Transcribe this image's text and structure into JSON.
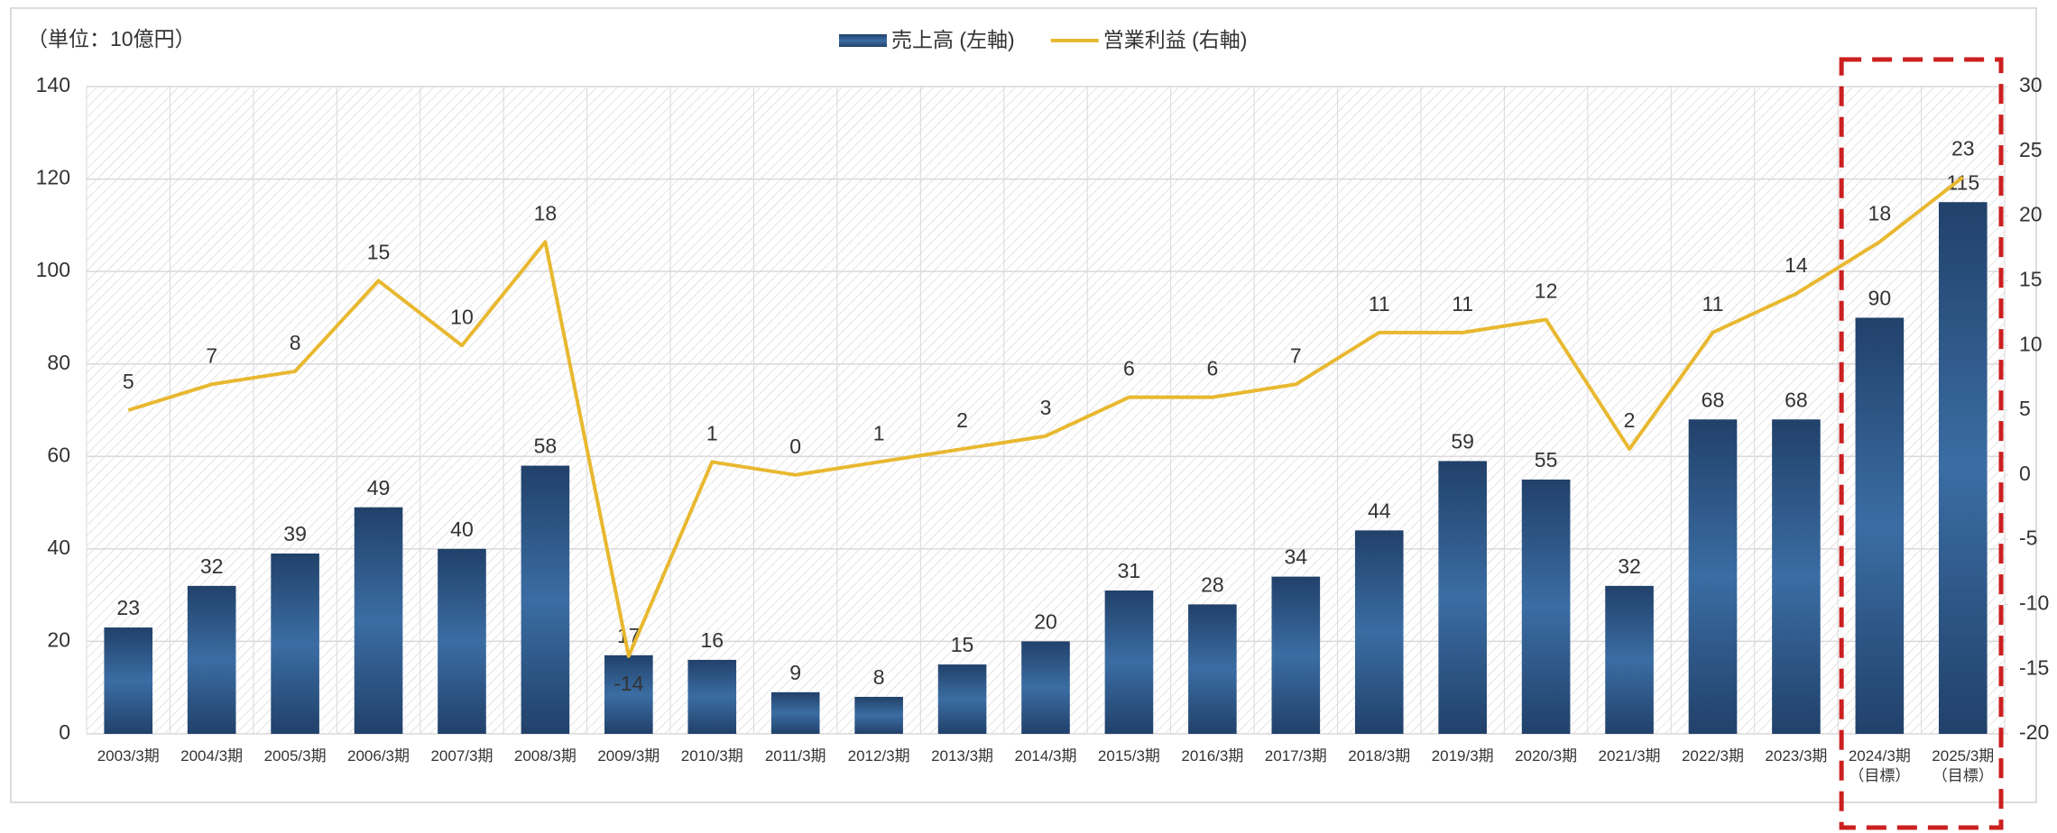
{
  "chart_data": {
    "type": "bar",
    "unit_label": "（単位：10億円）",
    "categories": [
      "2003/3期",
      "2004/3期",
      "2005/3期",
      "2006/3期",
      "2007/3期",
      "2008/3期",
      "2009/3期",
      "2010/3期",
      "2011/3期",
      "2012/3期",
      "2013/3期",
      "2014/3期",
      "2015/3期",
      "2016/3期",
      "2017/3期",
      "2018/3期",
      "2019/3期",
      "2020/3期",
      "2021/3期",
      "2022/3期",
      "2023/3期",
      "2024/3期\n（目標）",
      "2025/3期\n（目標）"
    ],
    "series": [
      {
        "name": "売上高 (左軸)",
        "type": "bar",
        "color": "#2c5282",
        "values": [
          23,
          32,
          39,
          49,
          40,
          58,
          17,
          16,
          9,
          8,
          15,
          20,
          31,
          28,
          34,
          44,
          59,
          55,
          32,
          68,
          68,
          90,
          115
        ]
      },
      {
        "name": "営業利益 (右軸)",
        "type": "line",
        "axis": "y2",
        "color": "#e8b830",
        "values": [
          5,
          7,
          8,
          15,
          10,
          18,
          -14,
          1,
          0,
          1,
          2,
          3,
          6,
          6,
          7,
          11,
          11,
          12,
          2,
          11,
          14,
          18,
          23
        ]
      }
    ],
    "ylim": [
      0,
      140
    ],
    "yticks": [
      0,
      20,
      40,
      60,
      80,
      100,
      120,
      140
    ],
    "y2lim": [
      -20,
      30
    ],
    "y2ticks": [
      -20,
      -15,
      -10,
      -5,
      0,
      5,
      10,
      15,
      20,
      25,
      30
    ],
    "grid": true,
    "legend": "top"
  }
}
